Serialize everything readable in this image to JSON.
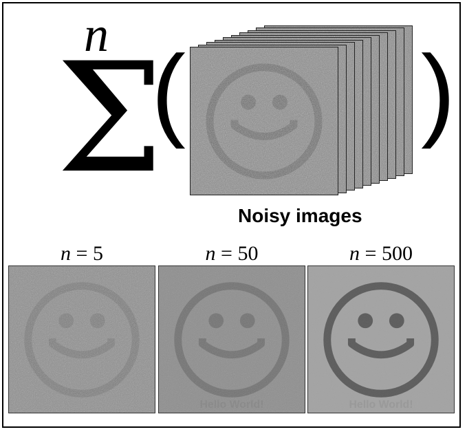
{
  "equation": {
    "operator": "Σ",
    "upper_limit": "n",
    "open_paren": "(",
    "close_paren": ")"
  },
  "stack": {
    "caption": "Noisy images",
    "layers": 10,
    "noise_color": "#8a8a8a",
    "face_color": "#6b6b6b"
  },
  "panels": [
    {
      "var": "n",
      "eq": " = 5",
      "bg": "#8d8d8d",
      "face": "#7a7a7a",
      "noise": 0.55,
      "watermark": ""
    },
    {
      "var": "n",
      "eq": " = 50",
      "bg": "#8e8e8e",
      "face": "#727272",
      "noise": 0.25,
      "watermark": "Hello World!"
    },
    {
      "var": "n",
      "eq": " = 500",
      "bg": "#a3a3a3",
      "face": "#5c5c5c",
      "noise": 0.08,
      "watermark": "Hello World!"
    }
  ]
}
